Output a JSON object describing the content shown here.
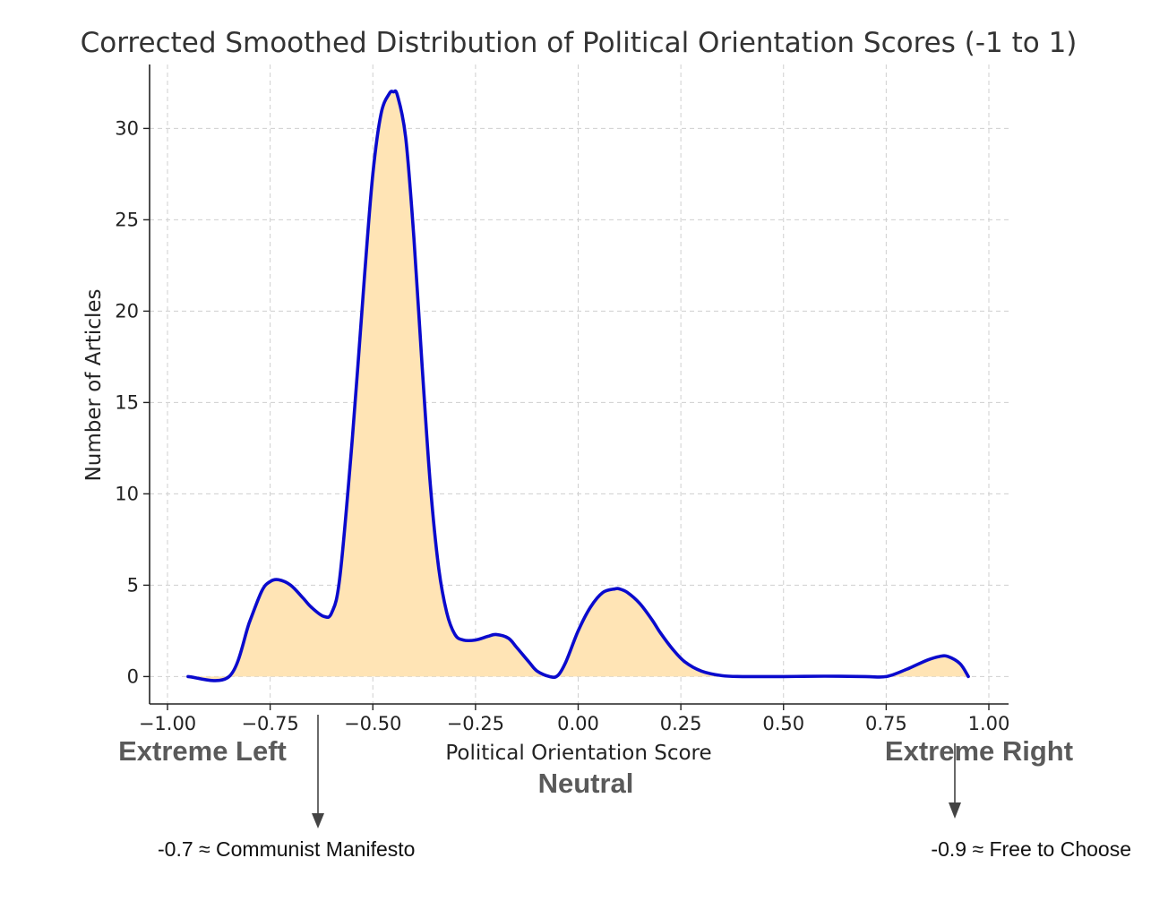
{
  "chart_data": {
    "type": "area",
    "title": "Corrected Smoothed Distribution of Political Orientation Scores (-1 to 1)",
    "xlabel": "Political Orientation Score",
    "ylabel": "Number of Articles",
    "xlim": [
      -1.0,
      1.0
    ],
    "ylim": [
      -1.5,
      33.5
    ],
    "grid": true,
    "x_ticks": [
      "−1.00",
      "−0.75",
      "−0.50",
      "−0.25",
      "0.00",
      "0.25",
      "0.50",
      "0.75",
      "1.00"
    ],
    "y_ticks": [
      "0",
      "5",
      "10",
      "15",
      "20",
      "25",
      "30"
    ],
    "x_tick_values": [
      -1.0,
      -0.75,
      -0.5,
      -0.25,
      0.0,
      0.25,
      0.5,
      0.75,
      1.0
    ],
    "y_tick_values": [
      0,
      5,
      10,
      15,
      20,
      25,
      30
    ],
    "series": [
      {
        "x": [
          -0.95,
          -0.85,
          -0.8,
          -0.77,
          -0.75,
          -0.73,
          -0.7,
          -0.67,
          -0.65,
          -0.62,
          -0.6,
          -0.58,
          -0.55,
          -0.52,
          -0.5,
          -0.48,
          -0.46,
          -0.45,
          -0.44,
          -0.42,
          -0.4,
          -0.38,
          -0.36,
          -0.34,
          -0.32,
          -0.3,
          -0.28,
          -0.25,
          -0.22,
          -0.2,
          -0.17,
          -0.15,
          -0.12,
          -0.1,
          -0.07,
          -0.05,
          -0.03,
          0.0,
          0.03,
          0.06,
          0.09,
          0.1,
          0.12,
          0.15,
          0.18,
          0.2,
          0.23,
          0.26,
          0.3,
          0.35,
          0.4,
          0.5,
          0.6,
          0.7,
          0.75,
          0.8,
          0.85,
          0.88,
          0.9,
          0.93,
          0.95
        ],
        "y": [
          0,
          0,
          3,
          4.7,
          5.2,
          5.3,
          5.0,
          4.3,
          3.8,
          3.3,
          3.5,
          5.5,
          13,
          22,
          27.5,
          30.8,
          31.9,
          32.0,
          31.8,
          29.5,
          24,
          17,
          10.5,
          6,
          3.5,
          2.3,
          2.0,
          2.0,
          2.2,
          2.3,
          2.1,
          1.6,
          0.8,
          0.3,
          0.0,
          0.05,
          0.8,
          2.5,
          3.8,
          4.6,
          4.8,
          4.8,
          4.6,
          4.0,
          3.1,
          2.4,
          1.5,
          0.8,
          0.3,
          0.05,
          0,
          0,
          0.02,
          0,
          0,
          0.4,
          0.9,
          1.1,
          1.1,
          0.7,
          0
        ]
      }
    ],
    "line_color": "#0a0acd",
    "fill_color": "#ffe4b5",
    "grid_color": "#cfcfcf"
  },
  "labels": {
    "left": "Extreme Left",
    "center": "Neutral",
    "right": "Extreme Right",
    "annot_left": "-0.7 ≈ Communist Manifesto",
    "annot_right": "-0.9 ≈ Free to Choose"
  }
}
